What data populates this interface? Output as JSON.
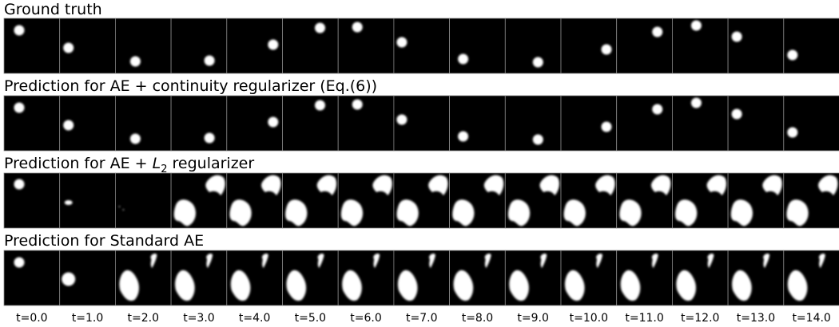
{
  "rows": [
    {
      "title": "Ground truth"
    },
    {
      "title": "Prediction for AE + continuity regularizer (Eq.(6))"
    },
    {
      "title": [
        "Prediction for AE + ",
        "L",
        "2",
        " regularizer"
      ]
    },
    {
      "title": "Prediction for Standard AE"
    }
  ],
  "time_labels": [
    "t=0.0",
    "t=1.0",
    "t=2.0",
    "t=3.0",
    "t=4.0",
    "t=5.0",
    "t=6.0",
    "t=7.0",
    "t=8.0",
    "t=9.0",
    "t=10.0",
    "t=11.0",
    "t=12.0",
    "t=13.0",
    "t=14.0"
  ]
}
